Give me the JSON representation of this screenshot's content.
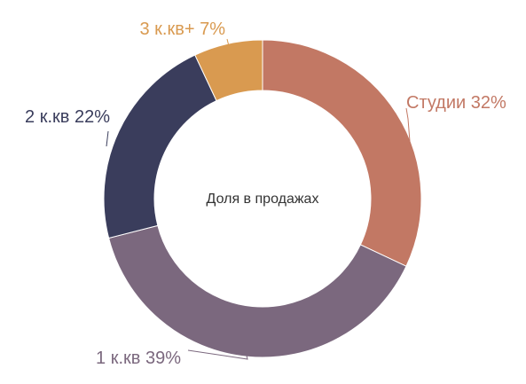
{
  "chart_data": {
    "type": "pie",
    "variant": "donut",
    "center_text": "Доля в продажах",
    "slices": [
      {
        "label": "Студии 32%",
        "value": 32,
        "color": "#c27864"
      },
      {
        "label": "1 к.кв 39%",
        "value": 39,
        "color": "#7b687e"
      },
      {
        "label": "2 к.кв 22%",
        "value": 22,
        "color": "#3a3d5c"
      },
      {
        "label": "3 к.кв+ 7%",
        "value": 7,
        "color": "#d99a50"
      }
    ],
    "legend": "none",
    "labels": "outside with leader lines"
  }
}
